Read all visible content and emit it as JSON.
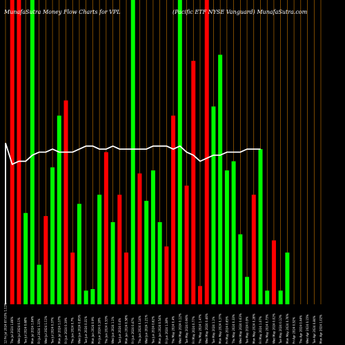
{
  "header": {
    "left_title": "MunafaSutra  Money Flow  Charts for VPL",
    "right_title": "(Pacific ETF NYSE Vanguard) MunafaSutra.com"
  },
  "chart_data": {
    "type": "bar",
    "colors": {
      "up": "#00ff00",
      "down": "#ff0000",
      "line": "#ffffff",
      "grid": "#cc7a00",
      "background": "#000000"
    },
    "categories": [
      "12 Fri Jul 2024 87.63% 1.11%",
      "Thu Jul 2024 1.86%",
      "Wed Jul 2024 0.1%",
      "Tue Jul 2024 0.68%",
      "Mon Jul 2024 1.84%",
      "Fri Jul 2024 1.31%",
      "Wed Jul 2024 1.11%",
      "Tue Jul 2024 0.37%",
      "Mon Jul 2024 1.07%",
      "Fri Jun 2024 0.19%",
      "Thu Jun 2024 0.7%",
      "Wed Jun 2024 0.85%",
      "Tue Jun 2024 0.31%",
      "Mon Jun 2024 0.9%",
      "Fri Jun 2024 0.18%",
      "Thu Jun 2024 0.53%",
      "Wed Jun 2024 1.1%",
      "Tue Jun 2024 0.4%",
      "Mon Jun 2024 0.58%",
      "Fri Jun 2024 0.47%",
      "Thu Jun 2024 0.14%",
      "Wed Jun 2024 1.21%",
      "Tue Jun 2024 0.62%",
      "Mon Jun 2024 0.54%",
      "Fri Jun 2024 1.38%",
      "Thu May 2024 0.4%",
      "Wed May 2024 0.12%",
      "Tue May 2024 0.96%",
      "Fri May 2024 0.77%",
      "Thu May 2024 1.47%",
      "Wed May 2024 0.46%",
      "Tue May 2024 1.1%",
      "Mon May 2024 0.37%",
      "Fri May 2024 0.65%",
      "Thu May 2024 0.33%",
      "Wed May 2024 0.63%",
      "Tue May 2024 0.9%",
      "Mon May 2024 0.28%",
      "Fri May 2024 1.07%",
      "Thu May 2024 0.73%",
      "Wed May 2024 0.02%",
      "Tue May 2024 0.12%",
      "Mon May 2024 0.76%",
      "Fri Apr 2024 0.52%",
      "Thu Apr 2024 0.44%",
      "Wed Apr 2024 0.15%",
      "Tue Apr 2024 0.84%",
      "Mon Apr 2024 1.02%"
    ],
    "values": [
      0,
      1.0,
      1.0,
      0.3,
      1.0,
      0.13,
      0.29,
      0.45,
      0.62,
      0.67,
      0.17,
      0.33,
      0.045,
      0.05,
      0.36,
      0.5,
      0.27,
      0.36,
      0.17,
      1.0,
      0.43,
      0.34,
      0.44,
      0.27,
      0.19,
      0.62,
      1.0,
      0.39,
      0.8,
      0.06,
      1.0,
      0.65,
      0.82,
      0.44,
      0.47,
      0.23,
      0.09,
      0.36,
      0.51,
      0.045,
      0.21,
      0.045,
      0.17,
      0,
      0,
      0,
      0,
      0
    ],
    "directions": [
      "up",
      "down",
      "down",
      "up",
      "up",
      "up",
      "down",
      "up",
      "up",
      "down",
      "down",
      "up",
      "up",
      "up",
      "up",
      "down",
      "up",
      "down",
      "down",
      "up",
      "down",
      "up",
      "up",
      "up",
      "down",
      "down",
      "up",
      "down",
      "down",
      "down",
      "down",
      "up",
      "up",
      "up",
      "up",
      "up",
      "up",
      "down",
      "up",
      "up",
      "down",
      "up",
      "up",
      "up",
      "up",
      "up",
      "up",
      "up"
    ],
    "line": [
      0.53,
      0.46,
      0.47,
      0.47,
      0.49,
      0.5,
      0.5,
      0.51,
      0.5,
      0.5,
      0.5,
      0.51,
      0.52,
      0.52,
      0.51,
      0.51,
      0.52,
      0.51,
      0.51,
      0.51,
      0.51,
      0.51,
      0.52,
      0.52,
      0.52,
      0.51,
      0.52,
      0.5,
      0.49,
      0.47,
      0.48,
      0.49,
      0.49,
      0.5,
      0.5,
      0.5,
      0.51,
      0.51,
      0.51,
      0,
      0,
      0,
      0,
      0,
      0,
      0,
      0,
      0
    ],
    "ylim": [
      0,
      1
    ],
    "grid": true
  }
}
